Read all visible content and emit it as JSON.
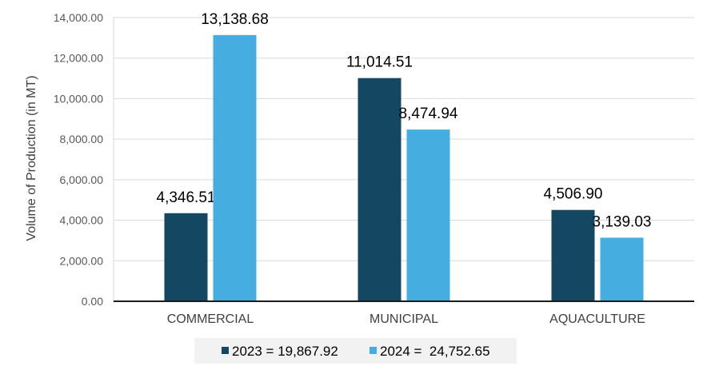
{
  "chart_data": {
    "type": "bar",
    "categories": [
      "COMMERCIAL",
      "MUNICIPAL",
      "AQUACULTURE"
    ],
    "series": [
      {
        "name": "2023 = 19,867.92",
        "color": "#144761",
        "values": [
          4346.51,
          11014.51,
          4506.9
        ],
        "labels": [
          "4,346.51",
          "11,014.51",
          "4,506.90"
        ]
      },
      {
        "name": "2024 =  24,752.65",
        "color": "#46ADE0",
        "values": [
          13138.68,
          8474.94,
          3139.03
        ],
        "labels": [
          "13,138.68",
          "8,474.94",
          "3,139.03"
        ]
      }
    ],
    "ylabel": "Volume of Production (in MT)",
    "xlabel": "",
    "ylim": [
      0,
      14000
    ],
    "yticks": [
      "0.00",
      "2,000.00",
      "4,000.00",
      "6,000.00",
      "8,000.00",
      "10,000.00",
      "12,000.00",
      "14,000.00"
    ],
    "grid": true,
    "legend_position": "bottom"
  }
}
